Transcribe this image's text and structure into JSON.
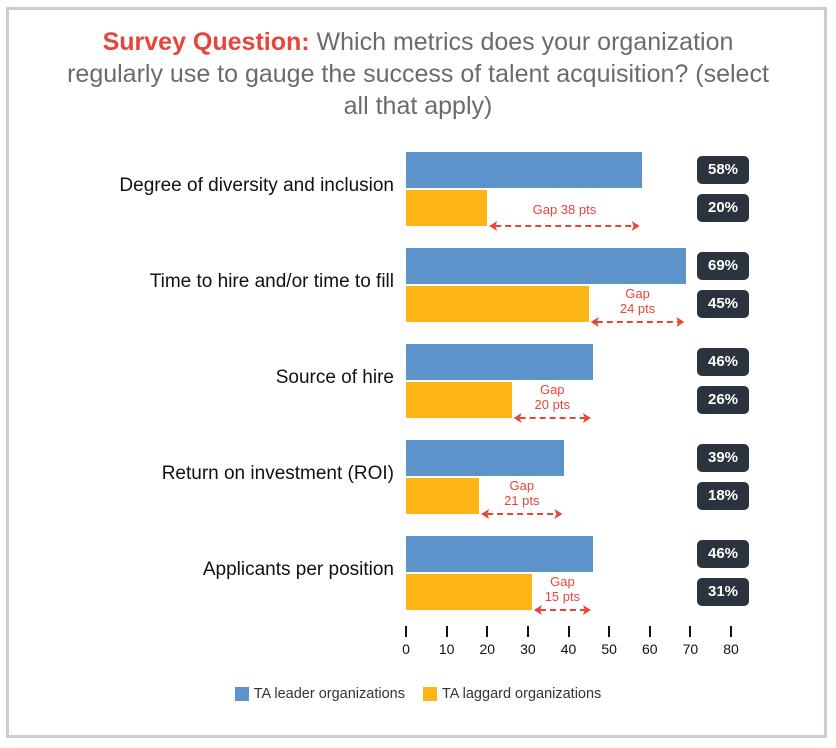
{
  "title": {
    "lead": "Survey Question:",
    "line1": " Which metrics does your organization",
    "line2": "regularly use to gauge the success of talent acquisition? (select",
    "line3": "all that apply)"
  },
  "colors": {
    "leader": "#5b93ca",
    "laggard": "#fdb515",
    "accent": "#e8443a",
    "badge": "#2b3340"
  },
  "chart_data": {
    "type": "bar",
    "orientation": "horizontal",
    "title": "Survey Question: Which metrics does your organization regularly use to gauge the success of talent acquisition? (select all that apply)",
    "categories": [
      "Degree of diversity and inclusion",
      "Time to hire and/or time to fill",
      "Source of hire",
      "Return on investment (ROI)",
      "Applicants per position"
    ],
    "series": [
      {
        "name": "TA leader organizations",
        "values": [
          58,
          69,
          46,
          39,
          46
        ]
      },
      {
        "name": "TA laggard organizations",
        "values": [
          20,
          45,
          26,
          18,
          31
        ]
      }
    ],
    "value_labels": {
      "leader": [
        "58%",
        "69%",
        "46%",
        "39%",
        "46%"
      ],
      "laggard": [
        "20%",
        "45%",
        "26%",
        "18%",
        "31%"
      ]
    },
    "annotations": [
      {
        "line1": "Gap 38 pts",
        "line2": ""
      },
      {
        "line1": "Gap",
        "line2": "24 pts"
      },
      {
        "line1": "Gap",
        "line2": "20 pts"
      },
      {
        "line1": "Gap",
        "line2": "21 pts"
      },
      {
        "line1": "Gap",
        "line2": "15 pts"
      }
    ],
    "xlim": [
      0,
      80
    ],
    "xticks": [
      "0",
      "10",
      "20",
      "30",
      "40",
      "50",
      "60",
      "70",
      "80"
    ],
    "xlabel": "",
    "ylabel": "",
    "grid": false,
    "legend": {
      "placement": "bottom",
      "entries": [
        "TA leader organizations",
        "TA laggard organizations"
      ]
    }
  }
}
